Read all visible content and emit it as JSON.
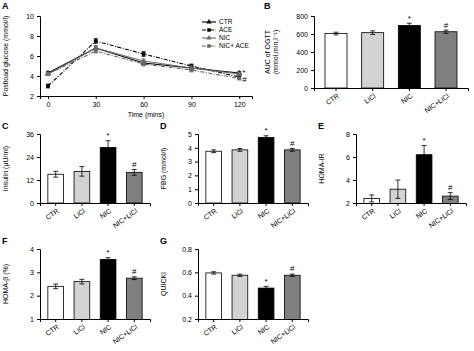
{
  "chart_data": [
    {
      "type": "line",
      "title": "A",
      "xlabel": "Time (mins)",
      "ylabel": "Postload glucose (mmol/l)",
      "x": [
        0,
        30,
        60,
        90,
        120
      ],
      "xlim": [
        -5,
        128
      ],
      "xticks": [
        0,
        30,
        60,
        90,
        120
      ],
      "ylim": [
        2,
        10
      ],
      "yticks": [
        2,
        4,
        6,
        8,
        10
      ],
      "legend": "upper right",
      "series": [
        {
          "name": "CTR",
          "color": "black",
          "marker": "triangle",
          "line_style": "solid",
          "values": [
            4.3,
            6.8,
            5.3,
            4.8,
            4.3
          ],
          "errors": [
            0.15,
            0.2,
            0.2,
            0.2,
            0.15
          ]
        },
        {
          "name": "ACE",
          "color": "black",
          "marker": "square",
          "line_style": "dashdot",
          "values": [
            3.0,
            7.5,
            6.2,
            5.0,
            3.9
          ],
          "errors": [
            0.2,
            0.25,
            0.25,
            0.2,
            0.15
          ]
        },
        {
          "name": "NIC",
          "color": "dimgray",
          "marker": "triangle",
          "line_style": "solid",
          "values": [
            4.2,
            6.8,
            5.5,
            4.8,
            4.2
          ],
          "errors": [
            0.15,
            0.2,
            0.2,
            0.2,
            0.15
          ]
        },
        {
          "name": "NIC+ ACE",
          "color": "dimgray",
          "marker": "square",
          "line_style": "dashdot",
          "values": [
            4.2,
            6.5,
            5.2,
            4.6,
            3.75
          ],
          "errors": [
            0.15,
            0.2,
            0.2,
            0.2,
            0.12
          ]
        }
      ],
      "annotations": [
        {
          "text": "*",
          "x": 120,
          "y": 4.3
        },
        {
          "text": "#",
          "x": 120,
          "y": 3.63
        }
      ]
    },
    {
      "type": "bar",
      "title": "B",
      "ylabel": "AUC of OGTT\n(mmol.min.l⁻¹)",
      "categories": [
        "CTR",
        "LiCl",
        "NIC",
        "NIC+LiCl"
      ],
      "values": [
        605,
        615,
        695,
        625
      ],
      "errors": [
        15,
        20,
        25,
        18
      ],
      "colors": [
        "white",
        "lightgray",
        "black",
        "gray"
      ],
      "ylim": [
        0,
        800
      ],
      "yticks": [
        0,
        200,
        400,
        600,
        800
      ],
      "annotations": [
        {
          "text": "*",
          "x": "NIC",
          "y": 740
        },
        {
          "text": "#",
          "x": "NIC+LiCl",
          "y": 663
        }
      ]
    },
    {
      "type": "bar",
      "title": "C",
      "ylabel": "Insulin (μU/ml)",
      "categories": [
        "CTR",
        "LiCl",
        "NIC",
        "NIC+LiCl"
      ],
      "values": [
        15.0,
        16.5,
        29.0,
        16.0
      ],
      "errors": [
        1.5,
        2.5,
        3.5,
        1.5
      ],
      "colors": [
        "white",
        "lightgray",
        "black",
        "gray"
      ],
      "ylim": [
        0,
        36
      ],
      "yticks": [
        0,
        12,
        24,
        36
      ],
      "annotations": [
        {
          "text": "*",
          "x": "NIC",
          "y": 33.94
        },
        {
          "text": "#",
          "x": "NIC+LiCl",
          "y": 18.94
        }
      ]
    },
    {
      "type": "bar",
      "title": "D",
      "ylabel": "FBG (mmol/l)",
      "categories": [
        "CTR",
        "LiCl",
        "NIC",
        "NIC+LiCl"
      ],
      "values": [
        3.75,
        3.85,
        4.75,
        3.85
      ],
      "errors": [
        0.1,
        0.1,
        0.12,
        0.1
      ],
      "colors": [
        "white",
        "lightgray",
        "black",
        "gray"
      ],
      "ylim": [
        0,
        5
      ],
      "yticks": [
        0,
        1,
        2,
        3,
        4,
        5
      ],
      "annotations": [
        {
          "text": "*",
          "x": "NIC",
          "y": 5.07
        },
        {
          "text": "#",
          "x": "NIC+LiCl",
          "y": 4.15
        }
      ]
    },
    {
      "type": "bar",
      "title": "E",
      "ylabel": "HOMA-IR",
      "categories": [
        "CTR",
        "LiCl",
        "NIC",
        "NIC+LiCl"
      ],
      "values": [
        2.4,
        3.2,
        6.2,
        2.6
      ],
      "errors": [
        0.3,
        0.8,
        0.8,
        0.3
      ],
      "colors": [
        "white",
        "lightgray",
        "black",
        "gray"
      ],
      "ylim": [
        2,
        8
      ],
      "yticks": [
        2,
        4,
        6,
        8
      ],
      "annotations": [
        {
          "text": "*",
          "x": "NIC",
          "y": 7.24
        },
        {
          "text": "#",
          "x": "NIC+LiCl",
          "y": 3.14
        }
      ]
    },
    {
      "type": "bar",
      "title": "F",
      "ylabel": "HOMA-β (%)",
      "categories": [
        "CTR",
        "LiCl",
        "NIC",
        "NIC+LiCl"
      ],
      "values": [
        2.4,
        2.6,
        3.55,
        2.75
      ],
      "errors": [
        0.1,
        0.1,
        0.08,
        0.06
      ],
      "colors": [
        "white",
        "lightgray",
        "black",
        "gray"
      ],
      "ylim": [
        1,
        4
      ],
      "yticks": [
        1,
        2,
        3,
        4
      ],
      "annotations": [
        {
          "text": "*",
          "x": "NIC",
          "y": 3.75
        },
        {
          "text": "#",
          "x": "NIC+LiCl",
          "y": 2.93
        }
      ]
    },
    {
      "type": "bar",
      "title": "G",
      "ylabel": "QUICKI",
      "categories": [
        "CTR",
        "LiCl",
        "NIC",
        "NIC+LiCl"
      ],
      "values": [
        0.595,
        0.575,
        0.465,
        0.575
      ],
      "errors": [
        0.01,
        0.01,
        0.015,
        0.01
      ],
      "colors": [
        "white",
        "lightgray",
        "black",
        "gray"
      ],
      "ylim": [
        0.2,
        0.8
      ],
      "yticks": [
        0.2,
        0.4,
        0.6,
        0.8
      ],
      "annotations": [
        {
          "text": "*",
          "x": "NIC",
          "y": 0.504
        },
        {
          "text": "#",
          "x": "NIC+LiCl",
          "y": 0.609
        }
      ]
    }
  ]
}
